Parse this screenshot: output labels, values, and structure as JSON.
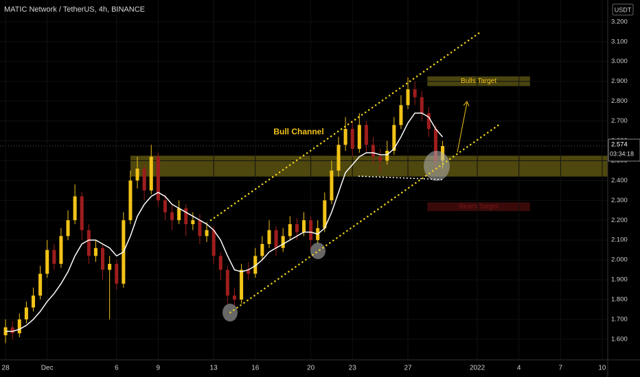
{
  "chart_data": {
    "type": "candlestick",
    "title": "MATIC Network / TetherUS, 4h, BINANCE",
    "unit": "USDT",
    "x": [
      0,
      0.5,
      1,
      1.5,
      2,
      2.5,
      3,
      3.5,
      4,
      4.5,
      5,
      5.5,
      6,
      6.5,
      7,
      7.5,
      8,
      8.5,
      9,
      9.5,
      10,
      10.5,
      11,
      11.5,
      12,
      12.5,
      13,
      13.5,
      14,
      14.5,
      15,
      15.5,
      16,
      16.5,
      17,
      17.5,
      18,
      18.5,
      19,
      19.5,
      20,
      20.5,
      21,
      21.5,
      22,
      22.5,
      23,
      23.5,
      24,
      24.5,
      25,
      25.5,
      26,
      26.5,
      27,
      27.5,
      28,
      28.5,
      29,
      29.5,
      30,
      30.5,
      31,
      31.5
    ],
    "open": [
      1.62,
      1.66,
      1.63,
      1.7,
      1.76,
      1.82,
      1.93,
      2.05,
      1.98,
      2.12,
      2.2,
      2.32,
      2.15,
      2.02,
      2.06,
      1.95,
      1.98,
      1.88,
      2.2,
      2.4,
      2.46,
      2.35,
      2.52,
      2.3,
      2.24,
      2.2,
      2.26,
      2.18,
      2.2,
      2.12,
      2.15,
      2.02,
      1.95,
      1.82,
      1.8,
      1.95,
      1.93,
      2.02,
      2.08,
      2.15,
      2.06,
      2.12,
      2.18,
      2.14,
      2.2,
      2.1,
      2.16,
      2.3,
      2.45,
      2.58,
      2.66,
      2.56,
      2.68,
      2.58,
      2.52,
      2.5,
      2.55,
      2.68,
      2.78,
      2.86,
      2.82,
      2.74,
      2.66,
      2.5
    ],
    "high": [
      1.7,
      1.69,
      1.73,
      1.79,
      1.86,
      1.97,
      2.1,
      2.08,
      2.16,
      2.25,
      2.38,
      2.34,
      2.18,
      2.1,
      2.08,
      2.02,
      2.0,
      2.24,
      2.45,
      2.52,
      2.48,
      2.58,
      2.54,
      2.33,
      2.28,
      2.3,
      2.28,
      2.24,
      2.23,
      2.19,
      2.17,
      2.04,
      1.97,
      1.86,
      1.98,
      1.99,
      2.06,
      2.12,
      2.2,
      2.17,
      2.16,
      2.22,
      2.21,
      2.24,
      2.22,
      2.2,
      2.34,
      2.5,
      2.62,
      2.72,
      2.7,
      2.74,
      2.7,
      2.62,
      2.56,
      2.6,
      2.72,
      2.83,
      2.92,
      2.9,
      2.85,
      2.77,
      2.68,
      2.6
    ],
    "low": [
      1.58,
      1.6,
      1.61,
      1.68,
      1.74,
      1.8,
      1.91,
      1.95,
      1.96,
      2.1,
      2.18,
      2.1,
      1.98,
      1.99,
      1.9,
      1.7,
      1.85,
      1.86,
      2.18,
      2.36,
      2.3,
      2.33,
      2.27,
      2.2,
      2.15,
      2.18,
      2.12,
      2.15,
      2.08,
      2.09,
      1.98,
      1.9,
      1.78,
      1.76,
      1.78,
      1.9,
      1.91,
      2.0,
      2.06,
      2.02,
      2.04,
      2.1,
      2.1,
      2.12,
      2.05,
      2.08,
      2.14,
      2.28,
      2.42,
      2.55,
      2.52,
      2.54,
      2.54,
      2.48,
      2.44,
      2.48,
      2.53,
      2.66,
      2.76,
      2.78,
      2.7,
      2.62,
      2.45,
      2.46
    ],
    "close": [
      1.66,
      1.63,
      1.7,
      1.76,
      1.82,
      1.93,
      2.05,
      1.98,
      2.12,
      2.2,
      2.32,
      2.15,
      2.02,
      2.06,
      1.95,
      1.98,
      1.88,
      2.2,
      2.4,
      2.46,
      2.35,
      2.52,
      2.3,
      2.24,
      2.2,
      2.26,
      2.18,
      2.2,
      2.12,
      2.15,
      2.02,
      1.95,
      1.82,
      1.8,
      1.95,
      1.93,
      2.02,
      2.08,
      2.15,
      2.06,
      2.12,
      2.18,
      2.14,
      2.2,
      2.1,
      2.16,
      2.3,
      2.45,
      2.58,
      2.66,
      2.56,
      2.68,
      2.58,
      2.52,
      2.5,
      2.55,
      2.68,
      2.78,
      2.86,
      2.82,
      2.74,
      2.66,
      2.5,
      2.574
    ],
    "up_color": "#f2c318",
    "down_color": "#9e1d1d",
    "ma": {
      "color": "#ffffff",
      "values": [
        1.64,
        1.64,
        1.65,
        1.67,
        1.7,
        1.74,
        1.79,
        1.83,
        1.88,
        1.94,
        2.02,
        2.08,
        2.1,
        2.1,
        2.08,
        2.06,
        2.02,
        2.04,
        2.12,
        2.22,
        2.28,
        2.32,
        2.34,
        2.32,
        2.28,
        2.26,
        2.24,
        2.22,
        2.2,
        2.18,
        2.15,
        2.1,
        2.02,
        1.95,
        1.94,
        1.95,
        1.97,
        2.0,
        2.04,
        2.06,
        2.08,
        2.1,
        2.12,
        2.14,
        2.14,
        2.13,
        2.16,
        2.24,
        2.34,
        2.44,
        2.48,
        2.52,
        2.54,
        2.54,
        2.53,
        2.53,
        2.56,
        2.62,
        2.69,
        2.74,
        2.74,
        2.72,
        2.66,
        2.62
      ]
    },
    "xlim": [
      -0.4,
      43.4
    ],
    "xticks": [
      {
        "value": 0,
        "label": "28"
      },
      {
        "value": 3,
        "label": "Dec"
      },
      {
        "value": 8,
        "label": "6"
      },
      {
        "value": 11,
        "label": "9"
      },
      {
        "value": 15,
        "label": "13"
      },
      {
        "value": 18,
        "label": "16"
      },
      {
        "value": 22,
        "label": "20"
      },
      {
        "value": 25,
        "label": "23"
      },
      {
        "value": 29,
        "label": "27"
      },
      {
        "value": 34,
        "label": "2022"
      },
      {
        "value": 37,
        "label": "4"
      },
      {
        "value": 40,
        "label": "7"
      },
      {
        "value": 43,
        "label": "10"
      }
    ],
    "ylim": [
      1.496,
      3.31
    ],
    "yticks": [
      {
        "value": 1.6,
        "label": "1.600"
      },
      {
        "value": 1.7,
        "label": "1.700"
      },
      {
        "value": 1.8,
        "label": "1.800"
      },
      {
        "value": 1.9,
        "label": "1.900"
      },
      {
        "value": 2.0,
        "label": "2.000"
      },
      {
        "value": 2.1,
        "label": "2.100"
      },
      {
        "value": 2.2,
        "label": "2.200"
      },
      {
        "value": 2.3,
        "label": "2.300"
      },
      {
        "value": 2.4,
        "label": "2.400"
      },
      {
        "value": 2.5,
        "label": "2.500"
      },
      {
        "value": 2.6,
        "label": "2.600"
      },
      {
        "value": 2.7,
        "label": "2.700"
      },
      {
        "value": 2.8,
        "label": "2.800"
      },
      {
        "value": 2.9,
        "label": "2.900"
      },
      {
        "value": 3.0,
        "label": "3.000"
      },
      {
        "value": 3.1,
        "label": "3.100"
      },
      {
        "value": 3.2,
        "label": "3.200"
      }
    ],
    "last_price": 2.574,
    "countdown": "03:34:18",
    "support_zone": {
      "color": "#5c5410",
      "x": [
        9,
        43.4
      ],
      "y": [
        2.42,
        2.525
      ]
    },
    "targets": [
      {
        "label": "Bulls Target",
        "color": "#4a4410",
        "text_color": "#f2c318",
        "x": [
          30.4,
          37.8
        ],
        "y": [
          2.876,
          2.925
        ]
      },
      {
        "label": "Bears Target",
        "color": "#3a0a0a",
        "text_color": "#7a1515",
        "x": [
          30.4,
          37.8
        ],
        "y": [
          2.246,
          2.29
        ]
      }
    ],
    "channel": {
      "color": "#f2d21c",
      "lines": [
        {
          "x": [
            14.8,
            34.2
          ],
          "y": [
            2.2,
            3.147
          ]
        },
        {
          "x": [
            16.2,
            35.5
          ],
          "y": [
            1.735,
            2.678
          ]
        }
      ]
    },
    "annotation": "Bull Channel"
  }
}
